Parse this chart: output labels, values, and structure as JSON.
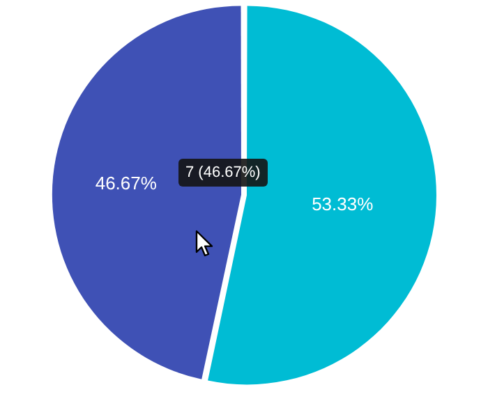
{
  "chart_data": {
    "type": "pie",
    "categories": [
      null,
      null
    ],
    "values": [
      53.33,
      46.67
    ],
    "colors": [
      "#00bcd4",
      "#3f51b5"
    ],
    "value_labels": [
      "53.33%",
      "46.67%"
    ],
    "annotations": [
      {
        "text": "7 (46.67%)"
      }
    ],
    "legend": false
  }
}
